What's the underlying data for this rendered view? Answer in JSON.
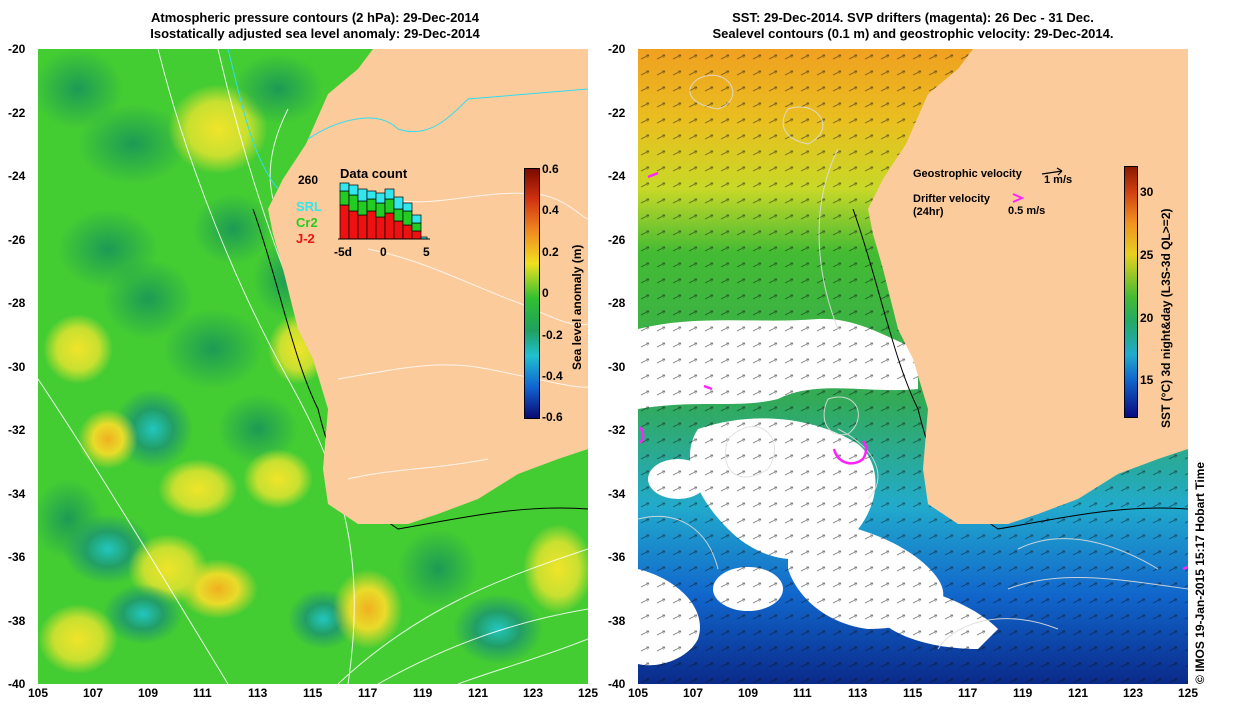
{
  "left_panel": {
    "title_line1": "Atmospheric pressure contours (2 hPa): 29-Dec-2014",
    "title_line2": "Isostatically adjusted sea level anomaly: 29-Dec-2014",
    "colorbar_label": "Sea level anomaly (m)",
    "colorbar_ticks": [
      "0.6",
      "0.4",
      "0.2",
      "0",
      "-0.2",
      "-0.4",
      "-0.6"
    ],
    "data_count": {
      "title": "Data count",
      "max_label": "260",
      "legend": [
        {
          "name": "SRL",
          "color": "#33e6ee"
        },
        {
          "name": "Cr2",
          "color": "#22cc22"
        },
        {
          "name": "J-2",
          "color": "#ee1111"
        }
      ],
      "x_ticks": [
        "-5d",
        "0",
        "5"
      ]
    }
  },
  "right_panel": {
    "title_line1": "SST: 29-Dec-2014. SVP drifters (magenta): 26 Dec - 31 Dec.",
    "title_line2": "Sealevel contours (0.1 m) and geostrophic velocity: 29-Dec-2014.",
    "colorbar_label": "SST (°C) 3d night&day (L3S-3d QL>=2)",
    "colorbar_ticks": [
      "30",
      "25",
      "20",
      "15"
    ],
    "geo_velocity_label": "Geostrophic velocity",
    "geo_velocity_scale": "1 m/s",
    "drifter_label_line1": "Drifter velocity",
    "drifter_label_line2": "(24hr)",
    "drifter_scale": "0.5 m/s"
  },
  "axes": {
    "lat_ticks": [
      "-20",
      "-22",
      "-24",
      "-26",
      "-28",
      "-30",
      "-32",
      "-34",
      "-36",
      "-38",
      "-40"
    ],
    "lon_ticks": [
      "105",
      "107",
      "109",
      "111",
      "113",
      "115",
      "117",
      "119",
      "121",
      "123",
      "125"
    ]
  },
  "credit": "© IMOS 19-Jan-2015 15:17 Hobart Time",
  "colors": {
    "land": "#fccb9c",
    "ocean_sla": "#44cc33",
    "sst_warm": "#f0a020",
    "sst_mid": "#33bb33",
    "sst_cool": "#1199dd",
    "sst_cold": "#0a2a9a",
    "drifter": "#ff22ff"
  }
}
